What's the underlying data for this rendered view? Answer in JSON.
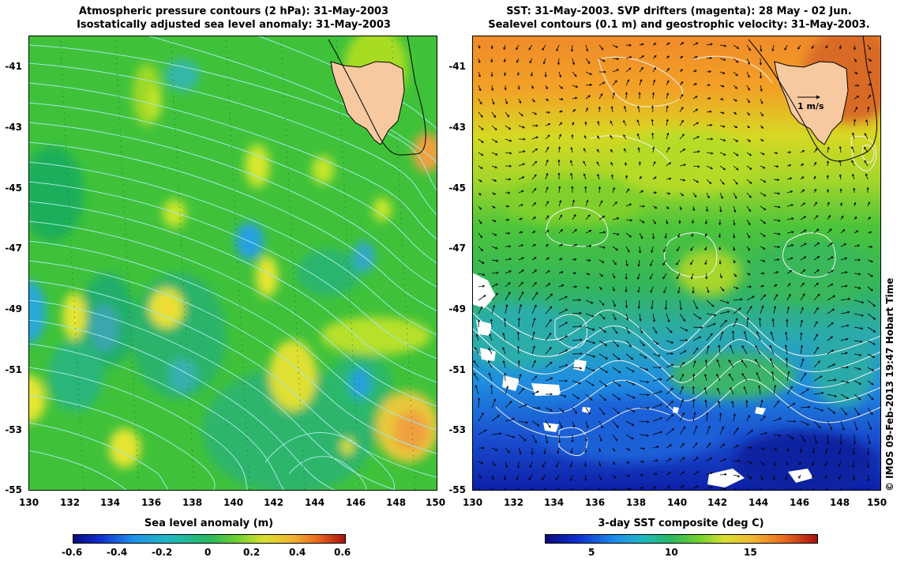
{
  "left_panel": {
    "title_line1": "Atmospheric pressure contours (2 hPa): 31-May-2003",
    "title_line2": "Isostatically adjusted sea level anomaly: 31-May-2003",
    "colorbar_title": "Sea level anomaly (m)",
    "colorbar_ticks": [
      "-0.6",
      "-0.4",
      "-0.2",
      "0",
      "0.2",
      "0.4",
      "0.6"
    ]
  },
  "right_panel": {
    "title_line1": "SST: 31-May-2003. SVP drifters (magenta): 28 May - 02 Jun.",
    "title_line2": "Sealevel contours (0.1 m) and geostrophic velocity: 31-May-2003.",
    "colorbar_title": "3-day SST composite (deg C)",
    "colorbar_ticks": [
      "5",
      "10",
      "15"
    ],
    "velocity_scale_label": "1 m/s",
    "credit": "© IMOS 09-Feb-2013 19:47 Hobart Time"
  },
  "axes": {
    "lat_ticks": [
      "-41",
      "-43",
      "-45",
      "-47",
      "-49",
      "-51",
      "-53",
      "-55"
    ],
    "lon_ticks": [
      "130",
      "132",
      "134",
      "136",
      "138",
      "140",
      "142",
      "144",
      "146",
      "148",
      "150"
    ]
  },
  "colors": {
    "land": "#f7c9a0",
    "sla_background": "#3fc23a",
    "pressure_contour": "#9fe8e0",
    "sealevel_contour": "#f2f2f2",
    "velocity_arrow": "#000000"
  }
}
